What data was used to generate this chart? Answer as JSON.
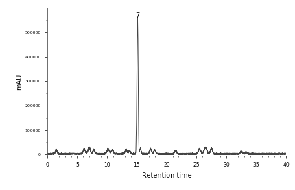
{
  "title": "",
  "xlabel": "Retention time",
  "ylabel": "mAU",
  "line_color": "#444444",
  "line_width": 0.7,
  "background_color": "#ffffff",
  "xlim": [
    0,
    40
  ],
  "ylim": [
    -5000,
    600000
  ],
  "peak7_label": "7",
  "peak7_x": 15.1,
  "peak7_y": 570000,
  "xtick_major": [
    0,
    5,
    10,
    15,
    20,
    25,
    30,
    35,
    40
  ],
  "ytick_vals": [
    0,
    100000,
    200000,
    300000,
    400000,
    500000
  ],
  "ytick_labels": [
    "0",
    "100000",
    "200000",
    "300000",
    "400000",
    "500000"
  ],
  "noise_amplitude": 1500,
  "baseline": 3000
}
